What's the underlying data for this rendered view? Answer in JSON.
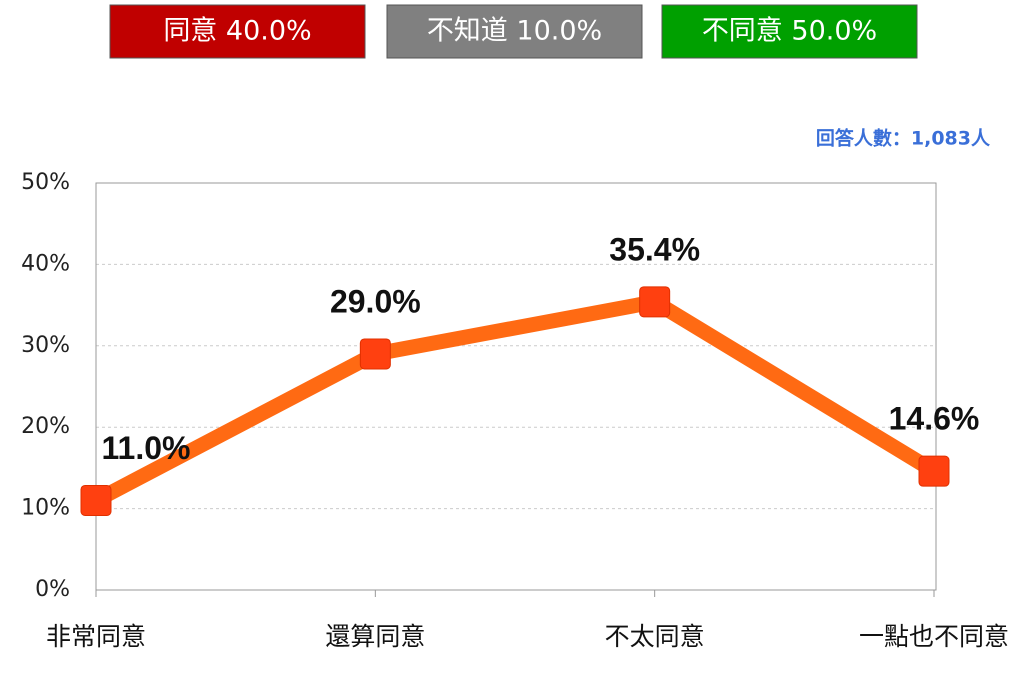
{
  "chart_data": {
    "type": "line",
    "summary": [
      {
        "text": "同意 40.0%",
        "color": "#c00000"
      },
      {
        "text": "不知道 10.0%",
        "color": "#808080"
      },
      {
        "text": "不同意 50.0%",
        "color": "#00a000"
      }
    ],
    "respondents": "回答人數：1,083人",
    "categories": [
      "非常同意",
      "還算同意",
      "不太同意",
      "一點也不同意"
    ],
    "values": [
      11.0,
      29.0,
      35.4,
      14.6
    ],
    "value_labels": [
      "11.0%",
      "29.0%",
      "35.4%",
      "14.6%"
    ],
    "color": "#ff6a13",
    "marker_color": "#ff4010",
    "ylim": [
      0,
      50
    ],
    "yticks": [
      {
        "value": 0,
        "label": "0%"
      },
      {
        "value": 10,
        "label": "10%"
      },
      {
        "value": 20,
        "label": "20%"
      },
      {
        "value": 30,
        "label": "30%"
      },
      {
        "value": 40,
        "label": "40%"
      },
      {
        "value": 50,
        "label": "50%"
      }
    ],
    "grid": true
  }
}
